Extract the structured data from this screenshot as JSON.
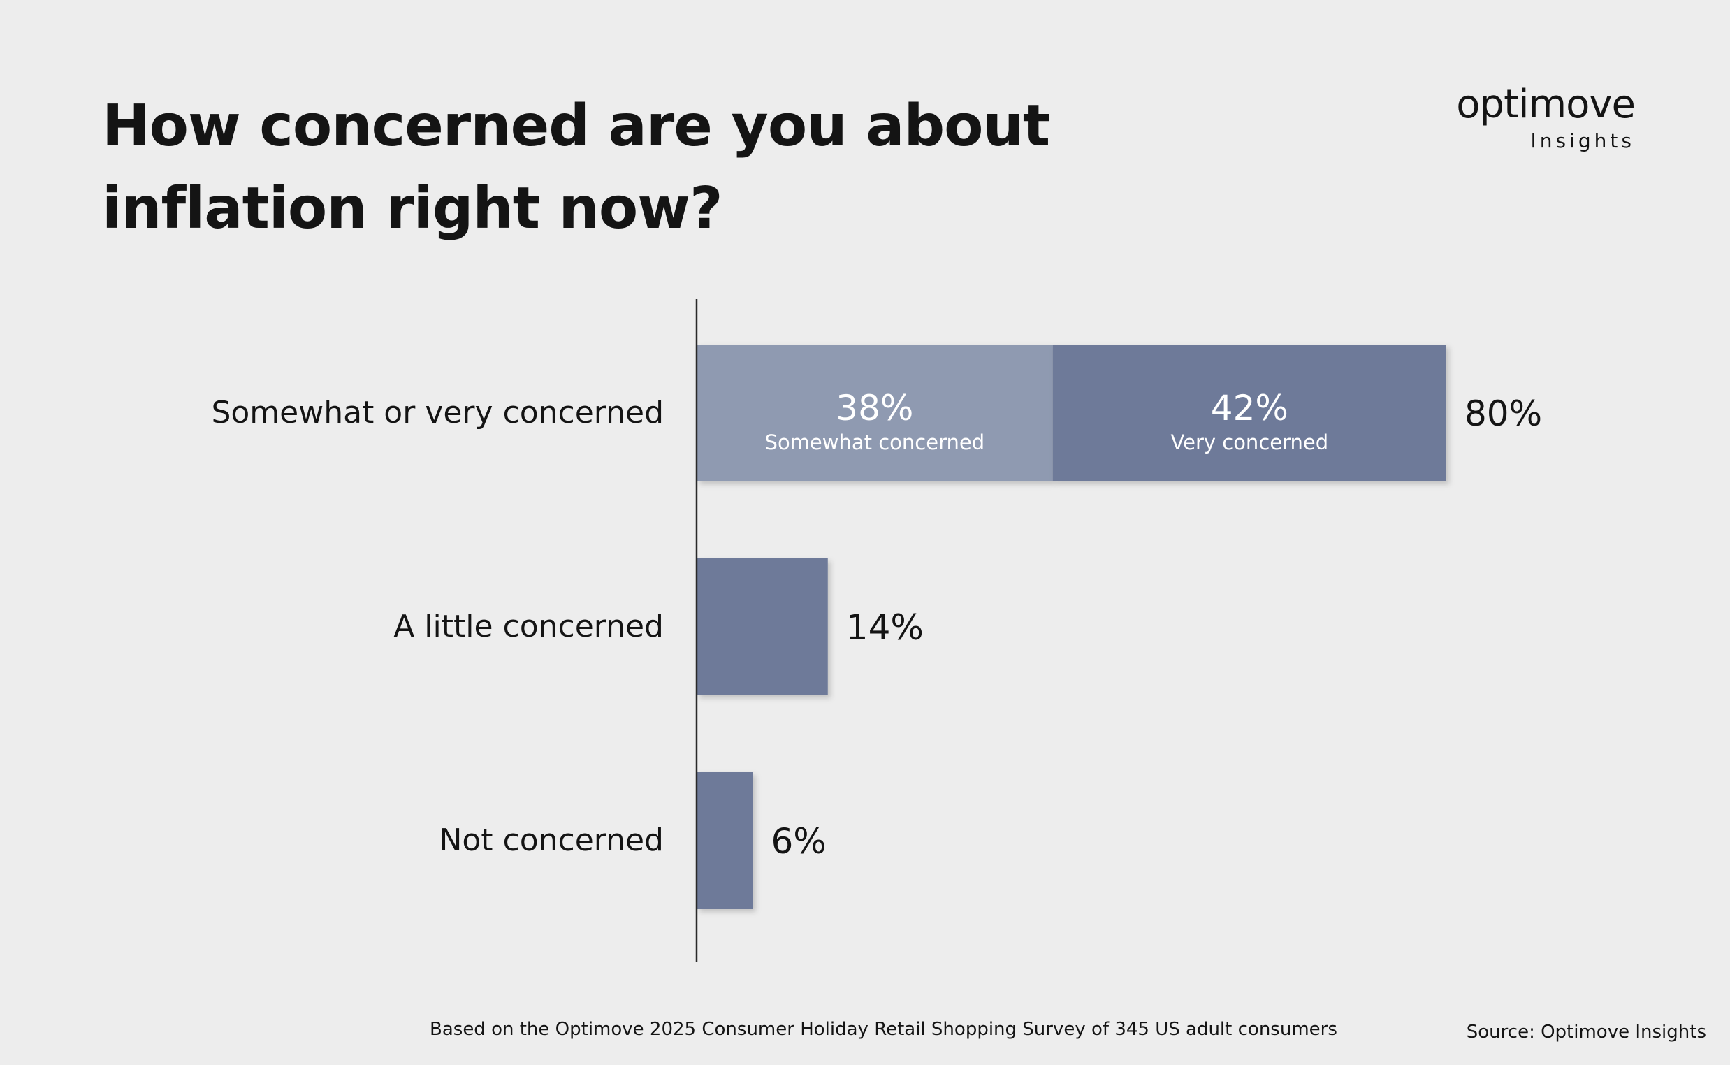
{
  "header": {
    "title_line1": "How concerned are you about",
    "title_line2": "inflation right now?"
  },
  "logo": {
    "brand": "optimove",
    "sub": "Insights"
  },
  "colors": {
    "background": "#ededed",
    "somewhat": "#8f9ab1",
    "bar": "#6e7a99",
    "axis": "#2a2a2a",
    "text": "#141414",
    "segment_text": "#ffffff"
  },
  "chart_data": {
    "type": "bar",
    "orientation": "horizontal",
    "stacked": true,
    "xlim": [
      0,
      80
    ],
    "grid": false,
    "categories": [
      "Somewhat or very concerned",
      "A little concerned",
      "Not concerned"
    ],
    "rows": [
      {
        "category": "Somewhat or very concerned",
        "total": 80,
        "total_label": "80%",
        "segments": [
          {
            "name": "Somewhat concerned",
            "value": 38,
            "label": "38%",
            "sublabel": "Somewhat concerned",
            "color": "#8f9ab1"
          },
          {
            "name": "Very concerned",
            "value": 42,
            "label": "42%",
            "sublabel": "Very concerned",
            "color": "#6e7a99"
          }
        ]
      },
      {
        "category": "A little concerned",
        "total": 14,
        "total_label": "14%",
        "segments": [
          {
            "name": "A little concerned",
            "value": 14,
            "color": "#6e7a99"
          }
        ]
      },
      {
        "category": "Not concerned",
        "total": 6,
        "total_label": "6%",
        "segments": [
          {
            "name": "Not concerned",
            "value": 6,
            "color": "#6e7a99"
          }
        ]
      }
    ]
  },
  "footer": {
    "note": "Based on the Optimove 2025 Consumer Holiday Retail Shopping Survey of 345 US adult consumers",
    "source": "Source: Optimove Insights"
  }
}
